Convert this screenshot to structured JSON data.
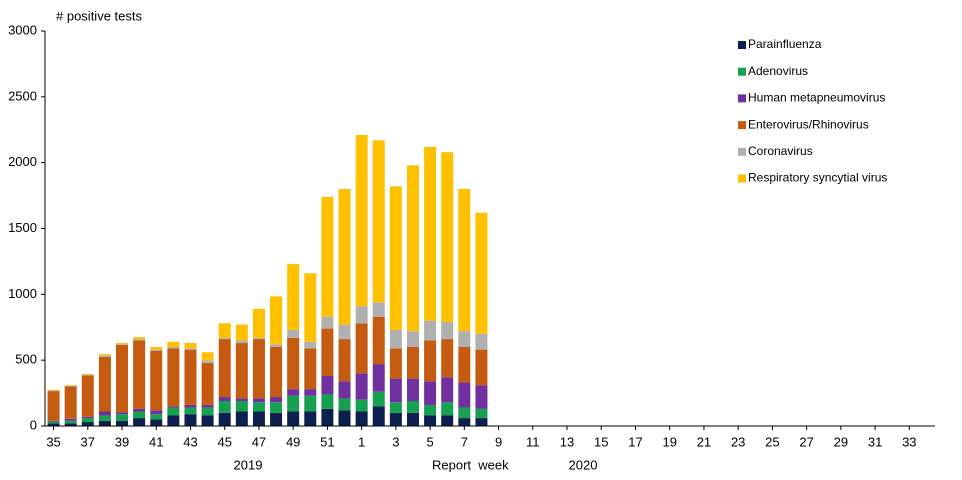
{
  "chart_data": {
    "type": "stacked_bar",
    "y_label": "# positive tests",
    "x_label": "Report  week",
    "annotations": [
      "2019",
      "2020"
    ],
    "categories": [
      "35",
      null,
      "37",
      null,
      "39",
      null,
      "41",
      null,
      "43",
      null,
      "45",
      null,
      "47",
      null,
      "49",
      null,
      "51",
      null,
      "1",
      null,
      "3",
      null,
      "5",
      null,
      "7",
      null,
      "9",
      null,
      "11",
      null,
      "13",
      null,
      "15",
      null,
      "17",
      null,
      "19",
      null,
      "21",
      null,
      "23",
      null,
      "25",
      null,
      "27",
      null,
      "29",
      null,
      "31",
      null,
      "33",
      null
    ],
    "series": [
      {
        "name": "Parainfluenza",
        "color": "#0d1f4f",
        "values": [
          20,
          20,
          30,
          40,
          40,
          60,
          50,
          80,
          90,
          80,
          100,
          110,
          110,
          100,
          110,
          110,
          130,
          120,
          110,
          150,
          100,
          100,
          80,
          80,
          60,
          60,
          null,
          null,
          null,
          null,
          null,
          null,
          null,
          null,
          null,
          null,
          null,
          null,
          null,
          null,
          null,
          null,
          null,
          null,
          null,
          null,
          null,
          null,
          null,
          null,
          null,
          null
        ]
      },
      {
        "name": "Adenovirus",
        "color": "#16a050",
        "values": [
          15,
          20,
          30,
          40,
          50,
          50,
          40,
          60,
          50,
          60,
          90,
          80,
          70,
          80,
          120,
          120,
          110,
          90,
          90,
          110,
          80,
          90,
          80,
          100,
          80,
          70,
          null,
          null,
          null,
          null,
          null,
          null,
          null,
          null,
          null,
          null,
          null,
          null,
          null,
          null,
          null,
          null,
          null,
          null,
          null,
          null,
          null,
          null,
          null,
          null,
          null,
          null
        ]
      },
      {
        "name": "Human metapneumovirus",
        "color": "#7030a0",
        "values": [
          5,
          15,
          10,
          30,
          15,
          20,
          30,
          10,
          20,
          20,
          30,
          20,
          30,
          40,
          50,
          50,
          140,
          130,
          200,
          210,
          180,
          170,
          180,
          190,
          190,
          180,
          null,
          null,
          null,
          null,
          null,
          null,
          null,
          null,
          null,
          null,
          null,
          null,
          null,
          null,
          null,
          null,
          null,
          null,
          null,
          null,
          null,
          null,
          null,
          null,
          null,
          null
        ]
      },
      {
        "name": "Enterovirus/Rhinovirus",
        "color": "#c55a11",
        "values": [
          225,
          245,
          315,
          415,
          510,
          520,
          450,
          440,
          420,
          320,
          440,
          420,
          450,
          380,
          390,
          310,
          360,
          320,
          380,
          360,
          230,
          240,
          310,
          290,
          270,
          270,
          null,
          null,
          null,
          null,
          null,
          null,
          null,
          null,
          null,
          null,
          null,
          null,
          null,
          null,
          null,
          null,
          null,
          null,
          null,
          null,
          null,
          null,
          null,
          null,
          null,
          null
        ]
      },
      {
        "name": "Coronavirus",
        "color": "#b0b0b0",
        "values": [
          5,
          5,
          5,
          10,
          5,
          10,
          10,
          10,
          10,
          20,
          10,
          20,
          10,
          20,
          60,
          50,
          90,
          110,
          130,
          110,
          140,
          120,
          150,
          130,
          120,
          120,
          null,
          null,
          null,
          null,
          null,
          null,
          null,
          null,
          null,
          null,
          null,
          null,
          null,
          null,
          null,
          null,
          null,
          null,
          null,
          null,
          null,
          null,
          null,
          null,
          null,
          null
        ]
      },
      {
        "name": "Respiratory syncytial virus",
        "color": "#ffc000",
        "values": [
          5,
          5,
          5,
          10,
          10,
          15,
          20,
          40,
          40,
          60,
          110,
          120,
          220,
          365,
          500,
          520,
          910,
          1030,
          1300,
          1230,
          1090,
          1260,
          1320,
          1290,
          1080,
          920,
          null,
          null,
          null,
          null,
          null,
          null,
          null,
          null,
          null,
          null,
          null,
          null,
          null,
          null,
          null,
          null,
          null,
          null,
          null,
          null,
          null,
          null,
          null,
          null,
          null,
          null
        ]
      }
    ],
    "ylim": [
      0,
      3000
    ],
    "yticks": [
      0,
      500,
      1000,
      1500,
      2000,
      2500,
      3000
    ],
    "grid": false,
    "legend": "top-right"
  }
}
